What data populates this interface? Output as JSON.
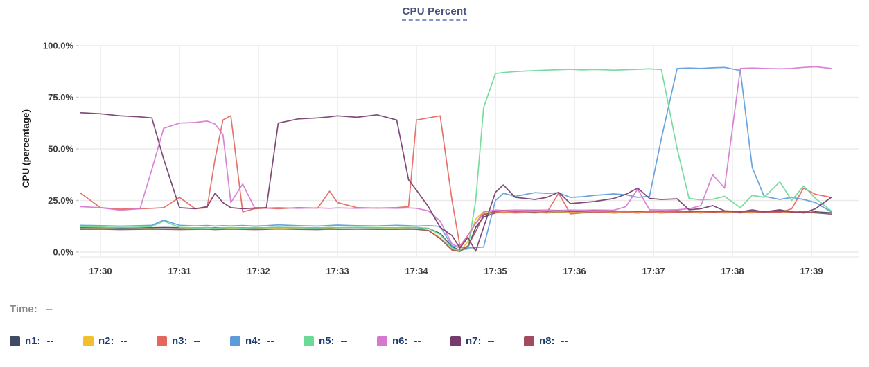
{
  "title": {
    "text": "CPU Percent"
  },
  "time_row": {
    "label": "Time:",
    "value": "--"
  },
  "chart_data": {
    "type": "line",
    "title": "CPU Percent",
    "xlabel": "",
    "ylabel": "CPU (percentage)",
    "grid": true,
    "legend_position": "bottom",
    "x_unit": "minutes after 17:30",
    "x": [
      -0.25,
      0,
      0.25,
      0.5,
      0.65,
      0.8,
      1,
      1.2,
      1.35,
      1.45,
      1.55,
      1.65,
      1.8,
      1.95,
      2.1,
      2.25,
      2.5,
      2.75,
      2.9,
      3,
      3.25,
      3.5,
      3.75,
      3.9,
      4,
      4.15,
      4.3,
      4.45,
      4.55,
      4.65,
      4.75,
      4.85,
      5,
      5.1,
      5.25,
      5.5,
      5.65,
      5.8,
      5.95,
      6.1,
      6.25,
      6.5,
      6.65,
      6.8,
      6.95,
      7.1,
      7.3,
      7.45,
      7.6,
      7.75,
      7.9,
      8.1,
      8.25,
      8.4,
      8.6,
      8.75,
      8.9,
      9.05,
      9.25
    ],
    "x_ticks": [
      {
        "t": 0,
        "label": "17:30"
      },
      {
        "t": 1,
        "label": "17:31"
      },
      {
        "t": 2,
        "label": "17:32"
      },
      {
        "t": 3,
        "label": "17:33"
      },
      {
        "t": 4,
        "label": "17:34"
      },
      {
        "t": 5,
        "label": "17:35"
      },
      {
        "t": 6,
        "label": "17:36"
      },
      {
        "t": 7,
        "label": "17:37"
      },
      {
        "t": 8,
        "label": "17:38"
      },
      {
        "t": 9,
        "label": "17:39"
      }
    ],
    "y_axis": {
      "label": "CPU (percentage)",
      "min": 0,
      "max": 100,
      "ticks": [
        {
          "v": 100,
          "label": "100.0%"
        },
        {
          "v": 75,
          "label": "75.0%"
        },
        {
          "v": 50,
          "label": "50.0%"
        },
        {
          "v": 25,
          "label": "25.0%"
        },
        {
          "v": 0,
          "label": "0.0%"
        }
      ]
    },
    "series": [
      {
        "name": "n1",
        "legend_label": "n1:",
        "legend_value": "--",
        "color": "#3e4a66",
        "values": [
          11.8,
          11.9,
          11.7,
          11.8,
          11.8,
          11.9,
          11.8,
          11.7,
          11.8,
          11.8,
          11.7,
          11.8,
          11.8,
          11.7,
          11.8,
          12,
          11.8,
          11.7,
          11.8,
          11.8,
          11.9,
          11.8,
          11.8,
          11.9,
          11.8,
          11.5,
          9,
          2.5,
          1,
          2,
          12,
          17,
          19,
          19.2,
          19,
          19.2,
          19,
          19.3,
          19,
          19.2,
          19.5,
          19,
          19.2,
          19,
          19.3,
          19,
          19.2,
          19.5,
          19,
          19.8,
          19.5,
          19,
          19.5,
          19.2,
          20,
          19.5,
          19,
          19.5,
          19
        ]
      },
      {
        "name": "n2",
        "legend_label": "n2:",
        "legend_value": "--",
        "color": "#f2c02e",
        "values": [
          11.2,
          11.3,
          11.1,
          11.2,
          11.3,
          11.1,
          11.2,
          11.3,
          11.1,
          11.2,
          11.2,
          11.3,
          11.1,
          11.2,
          11.2,
          11.4,
          11.2,
          11.1,
          11.3,
          11.2,
          11.1,
          11.2,
          11.3,
          11.2,
          11.1,
          10.5,
          7,
          1.5,
          0.5,
          5,
          16,
          19.5,
          19.6,
          19.4,
          19.6,
          19.8,
          19.5,
          19.6,
          19.4,
          19.6,
          19.8,
          19.5,
          19.6,
          19.4,
          19.6,
          19.5,
          19.8,
          19.5,
          19.6,
          19.4,
          19.6,
          19.5,
          19.4,
          19.6,
          19.3,
          19.5,
          19.2,
          19,
          18.6
        ]
      },
      {
        "name": "n3",
        "legend_label": "n3:",
        "legend_value": "--",
        "color": "#e4675e",
        "values": [
          28.5,
          21.5,
          20.8,
          21,
          21.2,
          21.5,
          26.5,
          21,
          21.5,
          45,
          64,
          66,
          19.5,
          21,
          21.3,
          21,
          21.5,
          21.3,
          29.5,
          24,
          21.5,
          21.3,
          21.5,
          22,
          64,
          65,
          66,
          25,
          3,
          8,
          14,
          18.5,
          19.3,
          19,
          19.2,
          19,
          19.2,
          28.5,
          18.5,
          19,
          19.2,
          19,
          19.2,
          19,
          19.2,
          19,
          19.5,
          19.2,
          19,
          19.3,
          19,
          19.2,
          19,
          19.5,
          19.2,
          21,
          31,
          28,
          26.5
        ]
      },
      {
        "name": "n4",
        "legend_label": "n4:",
        "legend_value": "--",
        "color": "#5d9cdb",
        "values": [
          13,
          12.8,
          12.6,
          12.8,
          13,
          15.5,
          13,
          12.7,
          12.9,
          12.6,
          12.8,
          12.7,
          12.9,
          12.6,
          12.8,
          13.2,
          12.8,
          12.6,
          12.9,
          13.1,
          12.8,
          12.7,
          13,
          12.8,
          12.6,
          12.8,
          12.5,
          3,
          2.2,
          2,
          2.2,
          2.5,
          25,
          28.5,
          27,
          28.8,
          28.5,
          28.7,
          26.5,
          26.8,
          27.5,
          28.2,
          27.8,
          26.5,
          27,
          55,
          89,
          89.2,
          89,
          89.3,
          89.5,
          88,
          41,
          27,
          25.5,
          26.5,
          25.5,
          24,
          19.5
        ]
      },
      {
        "name": "n5",
        "legend_label": "n5:",
        "legend_value": "--",
        "color": "#6cd996",
        "values": [
          12.3,
          12.1,
          11.9,
          12.1,
          12.4,
          15,
          12,
          11.7,
          11.9,
          11.6,
          11.8,
          11.9,
          11.7,
          11.9,
          11.8,
          12,
          11.9,
          11.7,
          12,
          11.8,
          12,
          11.9,
          11.8,
          12,
          11.9,
          11.5,
          8.5,
          2,
          0.8,
          1.5,
          25,
          70,
          86.5,
          87,
          87.5,
          88,
          88.2,
          88.4,
          88.6,
          88.3,
          88.5,
          88.2,
          88.4,
          88.6,
          88.8,
          88.5,
          50,
          26,
          25.3,
          25.6,
          27,
          21.5,
          27.5,
          26.5,
          34,
          25,
          32,
          26,
          20
        ]
      },
      {
        "name": "n6",
        "legend_label": "n6:",
        "legend_value": "--",
        "color": "#d678d0",
        "values": [
          22,
          21.5,
          20.3,
          21,
          40,
          60,
          62.5,
          62.8,
          63.5,
          62,
          57,
          24,
          33,
          21.5,
          21.3,
          21.5,
          21.2,
          21.4,
          21.2,
          21.4,
          21.2,
          21.4,
          21.2,
          21.4,
          21.2,
          20,
          15,
          4,
          2,
          8,
          14,
          19.5,
          20.4,
          20.2,
          20.4,
          20.3,
          20.4,
          20.2,
          20.4,
          20.3,
          20.4,
          20.3,
          22,
          30.5,
          20.5,
          20.4,
          20.5,
          21,
          22.5,
          37.5,
          31,
          89,
          89.2,
          89,
          88.8,
          89,
          89.5,
          89.8,
          89
        ]
      },
      {
        "name": "n7",
        "legend_label": "n7:",
        "legend_value": "--",
        "color": "#743b6c",
        "values": [
          67.5,
          67,
          66,
          65.5,
          65,
          45,
          21.5,
          21,
          22,
          28.5,
          24,
          21.5,
          21,
          21.3,
          21.5,
          62.5,
          64.5,
          65,
          65.5,
          66,
          65.3,
          66.5,
          64,
          35,
          30,
          22,
          12,
          8,
          2,
          7,
          0.5,
          12,
          29,
          32.5,
          26.5,
          25.5,
          26.5,
          29,
          23.5,
          24,
          24.5,
          26,
          28,
          31,
          26,
          25.5,
          25.8,
          20.5,
          21,
          22.5,
          20,
          19.5,
          20.5,
          19.5,
          20.5,
          19.5,
          19,
          21,
          26.5
        ]
      },
      {
        "name": "n8",
        "legend_label": "n8:",
        "legend_value": "--",
        "color": "#a34b5e",
        "values": [
          11,
          11.1,
          10.9,
          11,
          11.1,
          11,
          10.9,
          11,
          11.1,
          10.9,
          11,
          11.1,
          11,
          10.9,
          11,
          11.2,
          11,
          10.9,
          11.1,
          11,
          11.1,
          11,
          11,
          11.1,
          11,
          10.5,
          6.5,
          1,
          0.3,
          3,
          10,
          18,
          19.8,
          20,
          19.8,
          20,
          19.8,
          20,
          19.7,
          19.8,
          20,
          19.8,
          19.9,
          19.7,
          19.9,
          19.8,
          20,
          19.7,
          19.8,
          19.6,
          19.8,
          19.6,
          19.8,
          19.5,
          19.7,
          19.4,
          19.6,
          19,
          18.4
        ]
      }
    ]
  }
}
